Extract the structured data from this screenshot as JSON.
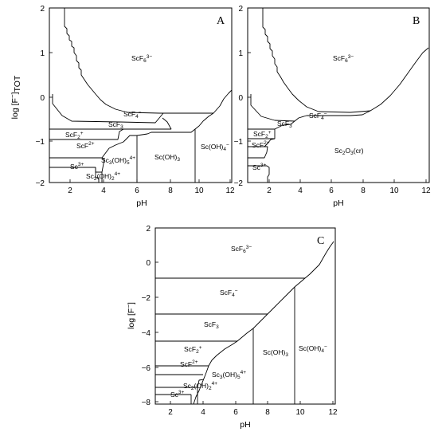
{
  "panels": [
    {
      "letter": "A",
      "ylabel": "log [F−]TOT",
      "xlabel": "pH",
      "yticks": [
        "2",
        "1",
        "0",
        "−1",
        "−2"
      ],
      "xticks": [
        "2",
        "4",
        "6",
        "8",
        "10",
        "12"
      ],
      "species": [
        "ScF6 3−",
        "ScF4 −",
        "ScF3",
        "ScF2 +",
        "ScF2+",
        "Sc3+",
        "Sc3(OH)5 4+",
        "Sc(OH)3",
        "Sc(OH)4 −",
        "Sc2(OH)2 4+"
      ]
    },
    {
      "letter": "B",
      "xlabel": "pH",
      "yticks": [
        "2",
        "1",
        "0",
        "−1",
        "−2"
      ],
      "xticks": [
        "2",
        "4",
        "6",
        "8",
        "10",
        "12"
      ],
      "species": [
        "ScF6 3−",
        "ScF4 −",
        "ScF3",
        "ScF2 +",
        "ScF2+",
        "Sc2O3(cr)",
        "Sc3+"
      ]
    },
    {
      "letter": "C",
      "ylabel": "log [F−]",
      "xlabel": "pH",
      "yticks": [
        "2",
        "0",
        "−2",
        "−4",
        "−6",
        "−8"
      ],
      "xticks": [
        "2",
        "4",
        "6",
        "8",
        "10",
        "12"
      ],
      "species": [
        "ScF6 3−",
        "ScF4 −",
        "ScF3",
        "ScF2 +",
        "ScF2+",
        "Sc3(OH)5 4+",
        "Sc(OH)3",
        "Sc(OH)4 −",
        "Sc2(OH)2 4+",
        "Sc3+"
      ]
    }
  ]
}
